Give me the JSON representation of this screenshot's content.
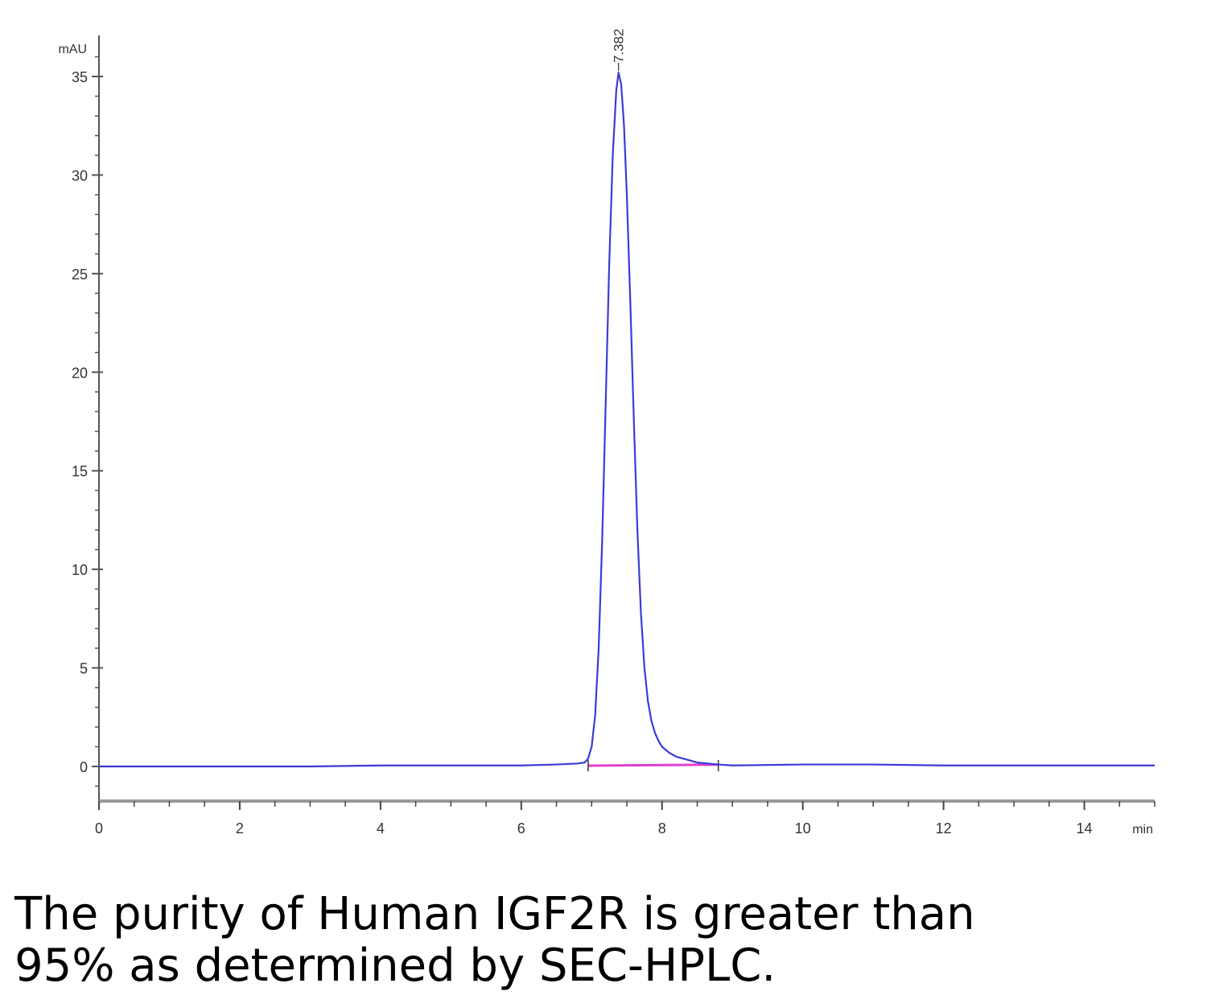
{
  "chart_data": {
    "type": "line",
    "title": "",
    "xlabel": "min",
    "ylabel": "mAU",
    "xlim": [
      0,
      15
    ],
    "ylim": [
      -2,
      36.5
    ],
    "x_ticks": [
      "0",
      "2",
      "4",
      "6",
      "8",
      "10",
      "12",
      "14"
    ],
    "y_ticks": [
      "0",
      "5",
      "10",
      "15",
      "20",
      "25",
      "30",
      "35"
    ],
    "grid": false,
    "legend": "none",
    "series": [
      {
        "color": "#3b3bd6",
        "x": [
          0,
          1,
          2,
          3,
          4,
          5,
          6,
          6.5,
          6.8,
          6.9,
          6.95,
          7.0,
          7.05,
          7.1,
          7.15,
          7.2,
          7.25,
          7.3,
          7.35,
          7.382,
          7.42,
          7.46,
          7.5,
          7.55,
          7.6,
          7.65,
          7.7,
          7.75,
          7.8,
          7.85,
          7.9,
          7.95,
          8.0,
          8.1,
          8.2,
          8.3,
          8.5,
          8.8,
          9.0,
          10.0,
          11.0,
          12.0,
          13.0,
          14.0,
          15.0
        ],
        "y": [
          0.0,
          0.0,
          0.0,
          0.0,
          0.05,
          0.05,
          0.05,
          0.1,
          0.15,
          0.2,
          0.4,
          1.0,
          2.6,
          6.0,
          11.5,
          18.5,
          25.5,
          31.0,
          34.3,
          35.2,
          34.6,
          32.5,
          29.0,
          23.5,
          17.5,
          12.0,
          7.8,
          5.0,
          3.3,
          2.3,
          1.7,
          1.3,
          1.0,
          0.7,
          0.5,
          0.4,
          0.2,
          0.1,
          0.05,
          0.1,
          0.1,
          0.05,
          0.05,
          0.05,
          0.05
        ]
      }
    ],
    "baseline": {
      "color": "#e040d0",
      "x": [
        6.95,
        8.8
      ],
      "y": [
        0.0,
        0.05
      ]
    },
    "integration_marks": [
      6.95,
      8.8
    ],
    "annotations": [
      {
        "text": "7.382",
        "x": 7.382,
        "y": 35.2
      }
    ]
  },
  "caption": {
    "line1": "The purity of Human IGF2R is greater than",
    "line2": "95% as determined by SEC-HPLC."
  }
}
